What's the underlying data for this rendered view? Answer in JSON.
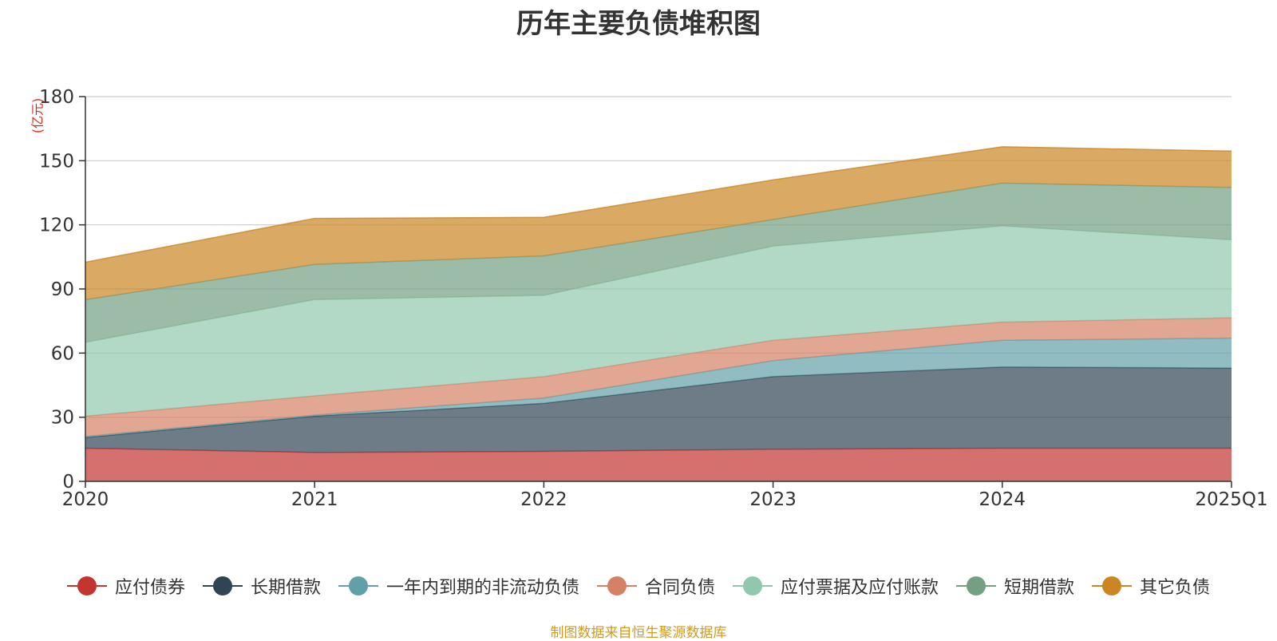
{
  "chart_data": {
    "type": "area",
    "stacked": true,
    "title": "历年主要负债堆积图",
    "unit_label": "(亿元)",
    "xlabel": "",
    "ylabel": "(亿元)",
    "ylim": [
      0,
      180
    ],
    "yticks": [
      0,
      30,
      60,
      90,
      120,
      150,
      180
    ],
    "grid": true,
    "legend_position": "bottom",
    "categories": [
      "2020",
      "2021",
      "2022",
      "2023",
      "2024",
      "2025Q1"
    ],
    "series": [
      {
        "name": "应付债券",
        "color": "#c23531",
        "values": [
          15.5,
          13.5,
          14,
          15,
          15.5,
          15.5
        ]
      },
      {
        "name": "长期借款",
        "color": "#2f4554",
        "values": [
          5,
          17,
          22.5,
          34,
          38,
          37.5
        ]
      },
      {
        "name": "一年内到期的非流动负债",
        "color": "#61a0a8",
        "values": [
          0.5,
          0.5,
          2.5,
          7.5,
          12.5,
          14
        ]
      },
      {
        "name": "合同负债",
        "color": "#d48265",
        "values": [
          9.5,
          9,
          10,
          9.5,
          8.5,
          9.5
        ]
      },
      {
        "name": "应付票据及应付账款",
        "color": "#91c7ae",
        "values": [
          34.5,
          45,
          38,
          44,
          45,
          36.5
        ]
      },
      {
        "name": "短期借款",
        "color": "#749f83",
        "values": [
          20,
          16.5,
          18.5,
          12.5,
          20,
          24.5
        ]
      },
      {
        "name": "其它负债",
        "color": "#ca8622",
        "values": [
          17.5,
          21.5,
          18,
          18.5,
          17,
          17
        ]
      }
    ]
  },
  "source_note": "制图数据来自恒生聚源数据库"
}
